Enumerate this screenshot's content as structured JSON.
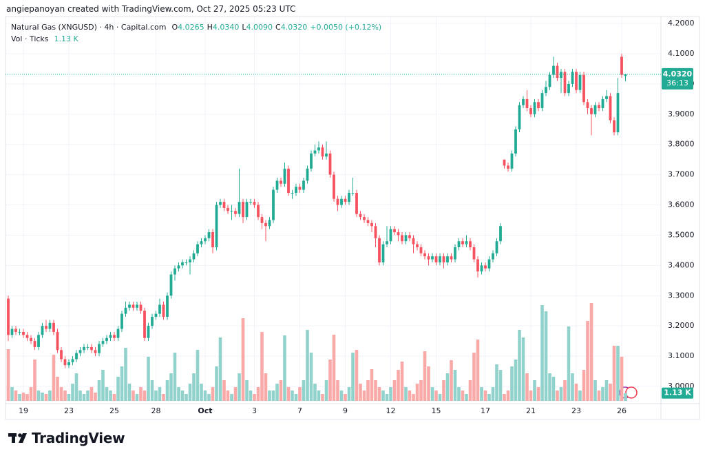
{
  "credit": "angiepanoyan created with TradingView.com, Oct 27, 2025 05:23 UTC",
  "logo": "TradingView",
  "chart_data": {
    "type": "candlestick",
    "title": "Natural Gas (XNGUSD) · 4h · Capital.com",
    "ohlc_labels": [
      "O",
      "H",
      "L",
      "C"
    ],
    "ohlc_values": [
      "4.0265",
      "4.0340",
      "4.0090",
      "4.0320"
    ],
    "change": "+0.0050 (+0.12%)",
    "volume_title": "Vol · Ticks",
    "volume_value_label": "1.13 K",
    "last_price_label": "4.0320",
    "countdown": "36:13",
    "up_color": "#22ab94",
    "down_color": "#f7525f",
    "up_volume_color": "#92d2cc",
    "down_volume_color": "#f8a9a8",
    "grid": true,
    "ylim": [
      2.943,
      4.223
    ],
    "yticks": [
      {
        "value": 3,
        "label": "3.0000"
      },
      {
        "value": 3.1,
        "label": "3.1000"
      },
      {
        "value": 3.2,
        "label": "3.2000"
      },
      {
        "value": 3.3,
        "label": "3.3000"
      },
      {
        "value": 3.4,
        "label": "3.4000"
      },
      {
        "value": 3.5,
        "label": "3.5000"
      },
      {
        "value": 3.6,
        "label": "3.6000"
      },
      {
        "value": 3.7,
        "label": "3.7000"
      },
      {
        "value": 3.8,
        "label": "3.8000"
      },
      {
        "value": 3.9,
        "label": "3.9000"
      },
      {
        "value": 4,
        "label": "4.0000"
      },
      {
        "value": 4.1,
        "label": "4.1000"
      },
      {
        "value": 4.2,
        "label": "4.2000"
      }
    ],
    "volume_ylim": [
      0,
      15
    ],
    "categories": [
      null,
      null,
      null,
      null,
      "19",
      null,
      null,
      null,
      null,
      null,
      null,
      null,
      null,
      null,
      null,
      null,
      "23",
      null,
      null,
      null,
      null,
      null,
      null,
      null,
      null,
      null,
      null,
      null,
      "25",
      null,
      null,
      null,
      null,
      null,
      null,
      null,
      null,
      null,
      null,
      "28",
      null,
      null,
      null,
      null,
      null,
      null,
      null,
      null,
      null,
      null,
      null,
      null,
      "Oct",
      null,
      null,
      null,
      null,
      null,
      null,
      null,
      null,
      null,
      null,
      null,
      null,
      "3",
      null,
      null,
      null,
      null,
      null,
      null,
      null,
      null,
      null,
      null,
      null,
      "7",
      null,
      null,
      null,
      null,
      null,
      null,
      null,
      null,
      null,
      null,
      null,
      "9",
      null,
      null,
      null,
      null,
      null,
      null,
      null,
      null,
      null,
      null,
      null,
      "12",
      null,
      null,
      null,
      null,
      null,
      null,
      null,
      null,
      null,
      null,
      null,
      "15",
      null,
      null,
      null,
      null,
      null,
      null,
      null,
      null,
      null,
      null,
      null,
      null,
      "17",
      null,
      null,
      null,
      null,
      null,
      null,
      null,
      null,
      null,
      null,
      null,
      "21",
      null,
      null,
      null,
      null,
      null,
      null,
      null,
      null,
      null,
      null,
      null,
      "23",
      null,
      null,
      null,
      null,
      null,
      null,
      null,
      null,
      null,
      null,
      null,
      "26",
      null
    ],
    "ohlc": [
      [
        3.29,
        3.3,
        3.15,
        3.17
      ],
      [
        3.17,
        3.2,
        3.16,
        3.19
      ],
      [
        3.19,
        3.2,
        3.17,
        3.18
      ],
      [
        3.18,
        3.19,
        3.17,
        3.18
      ],
      [
        3.18,
        3.19,
        3.16,
        3.17
      ],
      [
        3.17,
        3.18,
        3.15,
        3.16
      ],
      [
        3.16,
        3.17,
        3.14,
        3.15
      ],
      [
        3.15,
        3.16,
        3.12,
        3.13
      ],
      [
        3.13,
        3.18,
        3.12,
        3.17
      ],
      [
        3.17,
        3.21,
        3.16,
        3.2
      ],
      [
        3.2,
        3.22,
        3.18,
        3.19
      ],
      [
        3.19,
        3.22,
        3.18,
        3.21
      ],
      [
        3.21,
        3.22,
        3.17,
        3.18
      ],
      [
        3.18,
        3.19,
        3.11,
        3.12
      ],
      [
        3.12,
        3.13,
        3.08,
        3.09
      ],
      [
        3.09,
        3.1,
        3.06,
        3.07
      ],
      [
        3.07,
        3.09,
        3.06,
        3.08
      ],
      [
        3.08,
        3.1,
        3.07,
        3.09
      ],
      [
        3.09,
        3.12,
        3.08,
        3.11
      ],
      [
        3.11,
        3.13,
        3.1,
        3.12
      ],
      [
        3.12,
        3.14,
        3.11,
        3.13
      ],
      [
        3.13,
        3.14,
        3.12,
        3.13
      ],
      [
        3.13,
        3.14,
        3.11,
        3.12
      ],
      [
        3.12,
        3.13,
        3.1,
        3.11
      ],
      [
        3.11,
        3.15,
        3.1,
        3.14
      ],
      [
        3.14,
        3.16,
        3.13,
        3.15
      ],
      [
        3.15,
        3.17,
        3.14,
        3.16
      ],
      [
        3.16,
        3.18,
        3.15,
        3.17
      ],
      [
        3.17,
        3.18,
        3.15,
        3.16
      ],
      [
        3.16,
        3.2,
        3.15,
        3.19
      ],
      [
        3.19,
        3.25,
        3.18,
        3.24
      ],
      [
        3.24,
        3.28,
        3.23,
        3.26
      ],
      [
        3.26,
        3.28,
        3.25,
        3.27
      ],
      [
        3.27,
        3.28,
        3.25,
        3.26
      ],
      [
        3.26,
        3.28,
        3.25,
        3.27
      ],
      [
        3.27,
        3.28,
        3.24,
        3.25
      ],
      [
        3.25,
        3.26,
        3.15,
        3.16
      ],
      [
        3.16,
        3.21,
        3.15,
        3.2
      ],
      [
        3.2,
        3.24,
        3.19,
        3.23
      ],
      [
        3.23,
        3.25,
        3.22,
        3.24
      ],
      [
        3.24,
        3.29,
        3.23,
        3.27
      ],
      [
        3.27,
        3.28,
        3.22,
        3.23
      ],
      [
        3.23,
        3.31,
        3.22,
        3.3
      ],
      [
        3.3,
        3.38,
        3.29,
        3.37
      ],
      [
        3.37,
        3.4,
        3.35,
        3.39
      ],
      [
        3.39,
        3.41,
        3.38,
        3.4
      ],
      [
        3.4,
        3.42,
        3.39,
        3.41
      ],
      [
        3.41,
        3.42,
        3.4,
        3.41
      ],
      [
        3.41,
        3.43,
        3.37,
        3.42
      ],
      [
        3.42,
        3.45,
        3.41,
        3.44
      ],
      [
        3.44,
        3.48,
        3.43,
        3.47
      ],
      [
        3.47,
        3.49,
        3.46,
        3.48
      ],
      [
        3.48,
        3.5,
        3.47,
        3.49
      ],
      [
        3.49,
        3.52,
        3.48,
        3.51
      ],
      [
        3.51,
        3.52,
        3.44,
        3.46
      ],
      [
        3.46,
        3.61,
        3.45,
        3.6
      ],
      [
        3.6,
        3.62,
        3.59,
        3.61
      ],
      [
        3.61,
        3.62,
        3.58,
        3.59
      ],
      [
        3.59,
        3.6,
        3.57,
        3.58
      ],
      [
        3.58,
        3.6,
        3.55,
        3.58
      ],
      [
        3.58,
        3.59,
        3.56,
        3.57
      ],
      [
        3.57,
        3.72,
        3.56,
        3.61
      ],
      [
        3.61,
        3.62,
        3.54,
        3.56
      ],
      [
        3.56,
        3.62,
        3.55,
        3.61
      ],
      [
        3.61,
        3.62,
        3.6,
        3.61
      ],
      [
        3.61,
        3.62,
        3.59,
        3.6
      ],
      [
        3.6,
        3.61,
        3.55,
        3.56
      ],
      [
        3.56,
        3.57,
        3.52,
        3.54
      ],
      [
        3.54,
        3.55,
        3.48,
        3.53
      ],
      [
        3.53,
        3.56,
        3.52,
        3.55
      ],
      [
        3.55,
        3.66,
        3.54,
        3.65
      ],
      [
        3.65,
        3.69,
        3.64,
        3.68
      ],
      [
        3.68,
        3.69,
        3.66,
        3.67
      ],
      [
        3.67,
        3.74,
        3.66,
        3.72
      ],
      [
        3.72,
        3.73,
        3.63,
        3.64
      ],
      [
        3.64,
        3.65,
        3.62,
        3.64
      ],
      [
        3.64,
        3.67,
        3.63,
        3.66
      ],
      [
        3.66,
        3.67,
        3.64,
        3.65
      ],
      [
        3.65,
        3.69,
        3.64,
        3.68
      ],
      [
        3.68,
        3.73,
        3.67,
        3.72
      ],
      [
        3.72,
        3.78,
        3.71,
        3.77
      ],
      [
        3.77,
        3.8,
        3.76,
        3.78
      ],
      [
        3.78,
        3.81,
        3.77,
        3.79
      ],
      [
        3.79,
        3.8,
        3.75,
        3.76
      ],
      [
        3.76,
        3.81,
        3.75,
        3.77
      ],
      [
        3.77,
        3.78,
        3.69,
        3.7
      ],
      [
        3.7,
        3.71,
        3.61,
        3.62
      ],
      [
        3.62,
        3.63,
        3.58,
        3.6
      ],
      [
        3.6,
        3.63,
        3.59,
        3.62
      ],
      [
        3.62,
        3.63,
        3.6,
        3.61
      ],
      [
        3.61,
        3.65,
        3.6,
        3.64
      ],
      [
        3.64,
        3.69,
        3.63,
        3.64
      ],
      [
        3.64,
        3.65,
        3.56,
        3.57
      ],
      [
        3.57,
        3.58,
        3.55,
        3.56
      ],
      [
        3.56,
        3.57,
        3.54,
        3.55
      ],
      [
        3.55,
        3.56,
        3.53,
        3.54
      ],
      [
        3.54,
        3.55,
        3.51,
        3.53
      ],
      [
        3.53,
        3.54,
        3.46,
        3.49
      ],
      [
        3.49,
        3.5,
        3.4,
        3.41
      ],
      [
        3.41,
        3.48,
        3.4,
        3.47
      ],
      [
        3.47,
        3.53,
        3.46,
        3.48
      ],
      [
        3.48,
        3.53,
        3.47,
        3.52
      ],
      [
        3.52,
        3.53,
        3.5,
        3.51
      ],
      [
        3.51,
        3.52,
        3.48,
        3.5
      ],
      [
        3.5,
        3.51,
        3.47,
        3.48
      ],
      [
        3.48,
        3.51,
        3.47,
        3.5
      ],
      [
        3.5,
        3.51,
        3.48,
        3.49
      ],
      [
        3.49,
        3.5,
        3.44,
        3.47
      ],
      [
        3.47,
        3.48,
        3.45,
        3.46
      ],
      [
        3.46,
        3.47,
        3.43,
        3.44
      ],
      [
        3.44,
        3.45,
        3.42,
        3.43
      ],
      [
        3.43,
        3.44,
        3.4,
        3.42
      ],
      [
        3.42,
        3.44,
        3.41,
        3.43
      ],
      [
        3.43,
        3.44,
        3.4,
        3.41
      ],
      [
        3.41,
        3.44,
        3.4,
        3.43
      ],
      [
        3.43,
        3.44,
        3.39,
        3.41
      ],
      [
        3.41,
        3.44,
        3.4,
        3.43
      ],
      [
        3.43,
        3.44,
        3.41,
        3.42
      ],
      [
        3.42,
        3.47,
        3.41,
        3.46
      ],
      [
        3.46,
        3.49,
        3.45,
        3.48
      ],
      [
        3.48,
        3.49,
        3.46,
        3.47
      ],
      [
        3.47,
        3.5,
        3.46,
        3.48
      ],
      [
        3.48,
        3.49,
        3.45,
        3.46
      ],
      [
        3.46,
        3.47,
        3.41,
        3.42
      ],
      [
        3.42,
        3.43,
        3.36,
        3.38
      ],
      [
        3.38,
        3.41,
        3.37,
        3.4
      ],
      [
        3.4,
        3.41,
        3.38,
        3.39
      ],
      [
        3.39,
        3.43,
        3.38,
        3.42
      ],
      [
        3.42,
        3.45,
        3.41,
        3.44
      ],
      [
        3.44,
        3.49,
        3.43,
        3.48
      ],
      [
        3.48,
        3.54,
        3.47,
        3.53
      ],
      [
        3.75,
        3.75,
        3.72,
        3.73
      ],
      [
        3.73,
        3.74,
        3.71,
        3.72
      ],
      [
        3.72,
        3.78,
        3.71,
        3.77
      ],
      [
        3.77,
        3.86,
        3.76,
        3.85
      ],
      [
        3.85,
        3.94,
        3.84,
        3.93
      ],
      [
        3.93,
        3.96,
        3.92,
        3.95
      ],
      [
        3.95,
        3.98,
        3.91,
        3.92
      ],
      [
        3.92,
        3.93,
        3.89,
        3.9
      ],
      [
        3.9,
        3.95,
        3.89,
        3.94
      ],
      [
        3.94,
        3.95,
        3.91,
        3.92
      ],
      [
        3.92,
        3.98,
        3.91,
        3.97
      ],
      [
        3.97,
        4.01,
        3.96,
        3.99
      ],
      [
        3.99,
        4.04,
        3.98,
        4.03
      ],
      [
        4.03,
        4.09,
        4.02,
        4.06
      ],
      [
        4.06,
        4.07,
        4.01,
        4.02
      ],
      [
        4.02,
        4.05,
        3.97,
        4.04
      ],
      [
        4.04,
        4.05,
        3.96,
        3.97
      ],
      [
        3.97,
        4.01,
        3.96,
        4.0
      ],
      [
        4.0,
        4.05,
        3.99,
        4.04
      ],
      [
        4.04,
        4.05,
        3.97,
        3.98
      ],
      [
        3.98,
        4.04,
        3.97,
        4.03
      ],
      [
        4.03,
        4.04,
        3.93,
        3.94
      ],
      [
        3.94,
        3.95,
        3.9,
        3.92
      ],
      [
        3.92,
        3.93,
        3.83,
        3.9
      ],
      [
        3.9,
        3.94,
        3.89,
        3.93
      ],
      [
        3.93,
        3.94,
        3.91,
        3.92
      ],
      [
        3.92,
        3.96,
        3.91,
        3.95
      ],
      [
        3.95,
        3.98,
        3.94,
        3.96
      ],
      [
        3.96,
        3.97,
        3.87,
        3.88
      ],
      [
        3.88,
        3.89,
        3.83,
        3.84
      ],
      [
        3.84,
        4.02,
        3.83,
        3.97
      ],
      [
        4.09,
        4.1,
        4.02,
        4.03
      ],
      [
        4.0265,
        4.034,
        4.009,
        4.032
      ]
    ],
    "volume": [
      7.5,
      2.0,
      1.5,
      1.0,
      1.2,
      1.0,
      2.0,
      6.0,
      1.5,
      1.2,
      1.0,
      1.5,
      6.7,
      3.5,
      2.0,
      1.5,
      1.0,
      2.5,
      4.0,
      1.5,
      1.0,
      1.5,
      2.0,
      1.2,
      3.0,
      4.5,
      2.0,
      1.5,
      1.0,
      3.5,
      5.0,
      7.7,
      2.5,
      1.5,
      1.0,
      2.0,
      1.5,
      6.4,
      3.0,
      1.5,
      2.0,
      1.0,
      3.0,
      4.0,
      7.0,
      2.0,
      1.5,
      1.0,
      2.5,
      4.0,
      7.4,
      2.5,
      1.5,
      1.0,
      2.0,
      5.0,
      9.2,
      3.0,
      1.5,
      1.0,
      2.0,
      4.0,
      12.0,
      3.0,
      1.5,
      1.0,
      2.0,
      10.0,
      4.0,
      1.5,
      1.5,
      2.5,
      3.0,
      9.5,
      2.0,
      1.5,
      1.0,
      2.0,
      3.0,
      10.3,
      7.0,
      2.5,
      1.5,
      1.0,
      3.0,
      6.0,
      9.6,
      3.0,
      1.5,
      1.0,
      2.0,
      7.0,
      7.4,
      2.5,
      1.5,
      3.0,
      4.6,
      3.0,
      2.0,
      1.5,
      1.0,
      2.0,
      3.0,
      4.5,
      5.7,
      2.0,
      1.5,
      1.0,
      2.5,
      3.0,
      7.2,
      5.0,
      2.0,
      1.5,
      1.0,
      3.0,
      4.0,
      5.9,
      4.5,
      2.0,
      1.5,
      1.0,
      3.0,
      7.0,
      8.9,
      2.0,
      1.5,
      1.0,
      2.0,
      5.3,
      4.5,
      1.0,
      1.5,
      5.0,
      6.0,
      10.3,
      9.2,
      4.0,
      1.5,
      3.0,
      2.0,
      13.9,
      13.0,
      4.0,
      3.5,
      1.5,
      2.0,
      3.0,
      10.8,
      4.0,
      2.5,
      1.5,
      4.5,
      11.6,
      14.2,
      3.0,
      1.5,
      2.0,
      3.0,
      2.5,
      8.0,
      8.0,
      6.4,
      1.13
    ]
  }
}
